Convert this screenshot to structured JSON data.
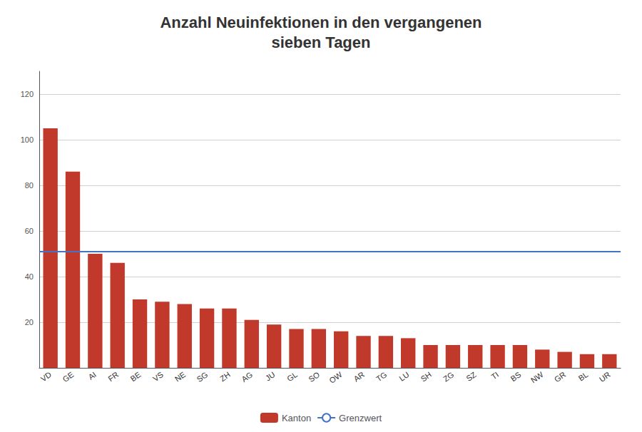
{
  "chart_data": {
    "type": "bar",
    "title": "Anzahl Neuinfektionen in den vergangenen\nsieben Tagen",
    "categories": [
      "VD",
      "GE",
      "AI",
      "FR",
      "BE",
      "VS",
      "NE",
      "SG",
      "ZH",
      "AG",
      "JU",
      "GL",
      "SO",
      "OW",
      "AR",
      "TG",
      "LU",
      "SH",
      "ZG",
      "SZ",
      "TI",
      "BS",
      "NW",
      "GR",
      "BL",
      "UR"
    ],
    "series": [
      {
        "name": "Kanton",
        "type": "bar",
        "color": "#c0392b",
        "values": [
          105,
          86,
          50,
          46,
          30,
          29,
          28,
          26,
          26,
          21,
          19,
          17,
          17,
          16,
          14,
          14,
          13,
          10,
          10,
          10,
          10,
          10,
          8,
          7,
          6,
          6
        ]
      },
      {
        "name": "Grenzwert",
        "type": "hline",
        "color": "#4472c4",
        "value": 51
      }
    ],
    "ylim": [
      0,
      130
    ],
    "yticks": [
      20,
      40,
      60,
      80,
      100,
      120
    ],
    "grid": true,
    "legend": "bottom"
  }
}
